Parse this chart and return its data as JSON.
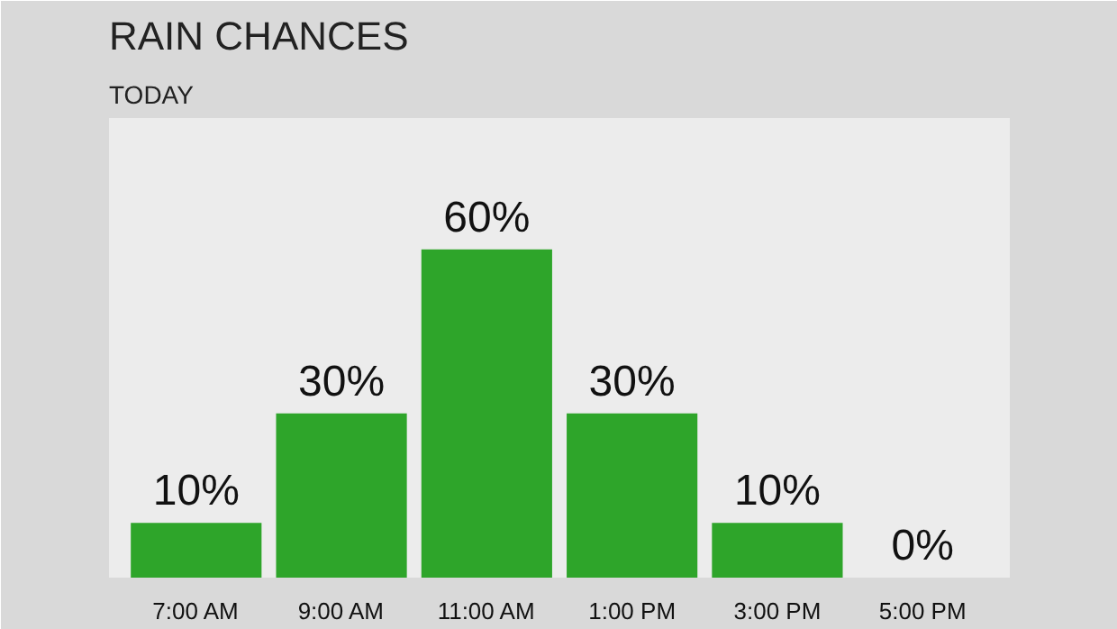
{
  "chart_data": {
    "type": "bar",
    "title": "RAIN CHANCES",
    "subtitle": "TODAY",
    "categories": [
      "7:00 AM",
      "9:00 AM",
      "11:00 AM",
      "1:00 PM",
      "3:00 PM",
      "5:00 PM"
    ],
    "values": [
      10,
      30,
      60,
      30,
      10,
      0
    ],
    "value_labels": [
      "10%",
      "30%",
      "60%",
      "30%",
      "10%",
      "0%"
    ],
    "color": "#2ea52a"
  }
}
